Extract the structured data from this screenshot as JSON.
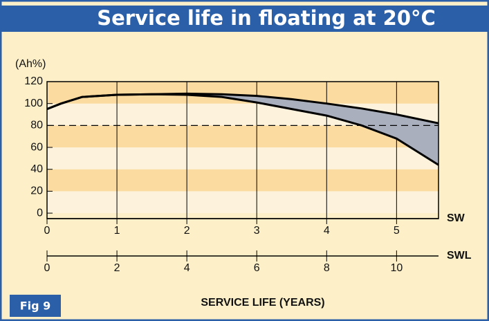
{
  "chart_data": {
    "type": "range_area",
    "title": "Service life in floating at 20°C",
    "y_label": "(Ah%)",
    "x_label": "SERVICE LIFE (YEARS)",
    "figure_label": "Fig 9",
    "ylim": [
      -5,
      120
    ],
    "yticks": [
      0,
      20,
      40,
      60,
      80,
      100,
      120
    ],
    "x_axes": [
      {
        "name": "SW",
        "xlim": [
          0,
          5.6
        ],
        "xticks": [
          0,
          1,
          2,
          3,
          4,
          5
        ]
      },
      {
        "name": "SWL",
        "xlim": [
          0,
          11.2
        ],
        "xticks": [
          0,
          2,
          4,
          6,
          8,
          10
        ]
      }
    ],
    "x": [
      0,
      0.2,
      0.5,
      1,
      1.5,
      2,
      2.5,
      3,
      3.5,
      4,
      4.5,
      5,
      5.6
    ],
    "series": [
      {
        "color": "#000000",
        "values": [
          95,
          100,
          106,
          108,
          108.5,
          109,
          108.5,
          107,
          104,
          100,
          95.5,
          90,
          82
        ]
      },
      {
        "color": "#000000",
        "values": [
          95,
          100,
          106,
          108,
          108.5,
          108,
          106,
          101,
          95,
          89,
          80,
          68,
          44
        ]
      }
    ],
    "fill_color": "#a9afbd",
    "reference_line": 80,
    "grid": true
  }
}
